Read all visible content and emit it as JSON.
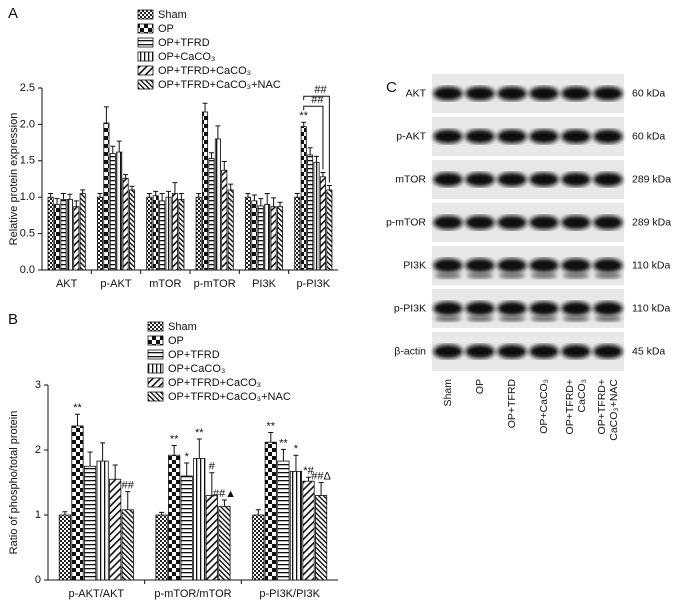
{
  "chart_data": [
    {
      "type": "bar",
      "panel": "A",
      "ylabel": "Relative protein expression",
      "categories": [
        "AKT",
        "p-AKT",
        "mTOR",
        "p-mTOR",
        "PI3K",
        "p-PI3K"
      ],
      "ylim": [
        0,
        2.5
      ],
      "yticks": [
        {
          "value": 0,
          "label": "0.0"
        },
        0.5,
        {
          "value": 1,
          "label": "1.0"
        },
        1.5,
        {
          "value": 2,
          "label": "2.0"
        },
        2.5
      ],
      "series": [
        {
          "name": "Sham",
          "color": "#111111",
          "pattern": "checker-small",
          "values": [
            1.0,
            1.0,
            1.0,
            1.0,
            1.0,
            1.0
          ],
          "errors": [
            0.05,
            0.05,
            0.05,
            0.05,
            0.05,
            0.05
          ]
        },
        {
          "name": "OP",
          "color": "#111111",
          "pattern": "checker-large",
          "values": [
            0.9,
            2.02,
            1.02,
            2.17,
            0.95,
            1.97
          ],
          "errors": [
            0.08,
            0.22,
            0.06,
            0.12,
            0.08,
            0.06
          ]
        },
        {
          "name": "OP+TFRD",
          "color": "#111111",
          "pattern": "horizontal",
          "values": [
            0.97,
            1.6,
            0.95,
            1.53,
            0.88,
            1.58
          ],
          "errors": [
            0.08,
            0.1,
            0.1,
            0.08,
            0.1,
            0.1
          ]
        },
        {
          "name": "OP+CaCO₃",
          "color": "#111111",
          "pattern": "vertical",
          "values": [
            0.97,
            1.62,
            1.0,
            1.8,
            0.9,
            1.48
          ],
          "errors": [
            0.07,
            0.15,
            0.08,
            0.18,
            0.15,
            0.08
          ]
        },
        {
          "name": "OP+TFRD+CaCO₃",
          "color": "#111111",
          "pattern": "diag-up",
          "values": [
            0.87,
            1.26,
            1.05,
            1.37,
            0.87,
            1.28
          ],
          "errors": [
            0.08,
            0.05,
            0.15,
            0.12,
            0.12,
            0.06
          ]
        },
        {
          "name": "OP+TFRD+CaCO₃+NAC",
          "color": "#111111",
          "pattern": "diag-down",
          "values": [
            1.05,
            1.1,
            0.97,
            1.1,
            0.87,
            1.1
          ],
          "errors": [
            0.05,
            0.05,
            0.08,
            0.08,
            0.06,
            0.06
          ]
        }
      ],
      "annotations": [
        {
          "text": "**",
          "category": 5,
          "series": 1
        },
        {
          "text": "##",
          "category": 5,
          "series": 1,
          "to": 4
        },
        {
          "text": "##",
          "category": 5,
          "series": 1,
          "to": 5
        }
      ]
    },
    {
      "type": "bar",
      "panel": "B",
      "ylabel": "Ratio of phospho/total protein",
      "categories": [
        "p-AKT/AKT",
        "p-mTOR/mTOR",
        "p-PI3K/PI3K"
      ],
      "ylim": [
        0,
        3
      ],
      "yticks": [
        0,
        1,
        2,
        3
      ],
      "series": [
        {
          "name": "Sham",
          "color": "#111111",
          "pattern": "checker-small",
          "values": [
            1.0,
            1.0,
            1.0
          ],
          "errors": [
            0.05,
            0.04,
            0.08
          ]
        },
        {
          "name": "OP",
          "color": "#111111",
          "pattern": "checker-large",
          "values": [
            2.37,
            1.92,
            2.12
          ],
          "errors": [
            0.18,
            0.15,
            0.15
          ]
        },
        {
          "name": "OP+TFRD",
          "color": "#111111",
          "pattern": "horizontal",
          "values": [
            1.75,
            1.6,
            1.83
          ],
          "errors": [
            0.22,
            0.2,
            0.18
          ]
        },
        {
          "name": "OP+CaCO₃",
          "color": "#111111",
          "pattern": "vertical",
          "values": [
            1.83,
            1.87,
            1.67
          ],
          "errors": [
            0.28,
            0.3,
            0.25
          ]
        },
        {
          "name": "OP+TFRD+CaCO₃",
          "color": "#111111",
          "pattern": "diag-up",
          "values": [
            1.55,
            1.3,
            1.52
          ],
          "errors": [
            0.22,
            0.35,
            0.06
          ]
        },
        {
          "name": "OP+TFRD+CaCO₃+NAC",
          "color": "#111111",
          "pattern": "diag-down",
          "values": [
            1.08,
            1.13,
            1.3
          ],
          "errors": [
            0.28,
            0.1,
            0.2
          ]
        }
      ],
      "annotations": [
        {
          "text": "**",
          "category": 0,
          "series": 1
        },
        {
          "text": "##",
          "category": 0,
          "series": 5
        },
        {
          "text": "**",
          "category": 1,
          "series": 1
        },
        {
          "text": "*",
          "category": 1,
          "series": 2
        },
        {
          "text": "**",
          "category": 1,
          "series": 3
        },
        {
          "text": "#",
          "category": 1,
          "series": 4
        },
        {
          "text": "##▲",
          "category": 1,
          "series": 5
        },
        {
          "text": "**",
          "category": 2,
          "series": 1
        },
        {
          "text": "**",
          "category": 2,
          "series": 2
        },
        {
          "text": "*",
          "category": 2,
          "series": 3
        },
        {
          "text": "*#",
          "category": 2,
          "series": 4
        },
        {
          "text": "##Δ",
          "category": 2,
          "series": 5
        }
      ]
    }
  ],
  "blot": {
    "panel": "C",
    "rows": [
      {
        "name": "AKT",
        "size": "60 kDa"
      },
      {
        "name": "p-AKT",
        "size": "60 kDa"
      },
      {
        "name": "mTOR",
        "size": "289 kDa"
      },
      {
        "name": "p-mTOR",
        "size": "289 kDa"
      },
      {
        "name": "PI3K",
        "size": "110 kDa"
      },
      {
        "name": "p-PI3K",
        "size": "110 kDa"
      },
      {
        "name": "β-actin",
        "size": "45 kDa"
      }
    ],
    "lanes": [
      [
        "Sham"
      ],
      [
        "OP"
      ],
      [
        "OP+TFRD"
      ],
      [
        "OP+CaCO₃"
      ],
      [
        "OP+TFRD+",
        "CaCO₃"
      ],
      [
        "OP+TFRD+",
        "CaCO₃+NAC"
      ]
    ]
  }
}
